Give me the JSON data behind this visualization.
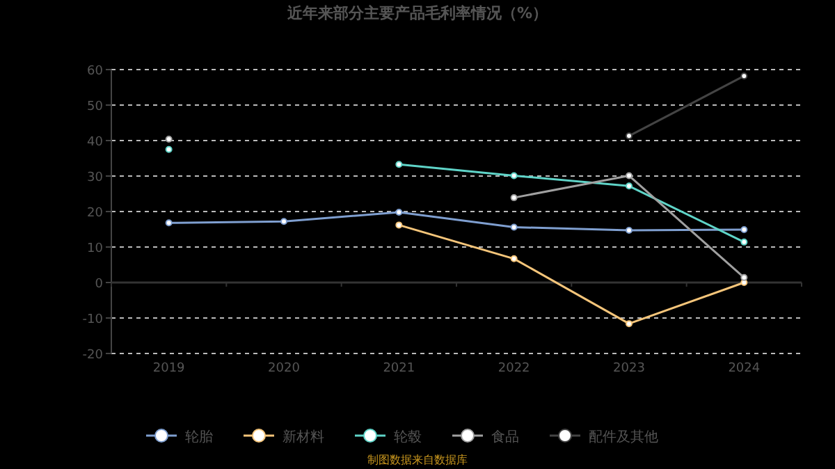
{
  "chart_data": {
    "type": "line",
    "title": "近年来部分主要产品毛利率情况（%）",
    "categories": [
      "2019",
      "2020",
      "2021",
      "2022",
      "2023",
      "2024"
    ],
    "series": [
      {
        "name": "轮胎",
        "color": "#7f9fd0",
        "values": [
          16.8,
          17.2,
          19.8,
          15.6,
          14.7,
          14.9
        ]
      },
      {
        "name": "新材料",
        "color": "#f5c57a",
        "values": [
          null,
          null,
          16.2,
          6.7,
          -11.6,
          0
        ]
      },
      {
        "name": "轮毂",
        "color": "#5fd4c8",
        "values": [
          37.5,
          null,
          33.3,
          30.1,
          27.2,
          11.4
        ]
      },
      {
        "name": "食品",
        "color": "#a0a0a0",
        "values": [
          40.4,
          null,
          null,
          23.9,
          30.1,
          1.4
        ]
      },
      {
        "name": "配件及其他",
        "color": "#444444",
        "values": [
          null,
          null,
          null,
          null,
          41.3,
          58.2
        ]
      }
    ],
    "ylim": [
      -20,
      60
    ],
    "yticks": [
      -20,
      -10,
      0,
      10,
      20,
      30,
      40,
      50,
      60
    ],
    "grid": "y",
    "legend": "bottom",
    "marker": "circle",
    "line_style": "solid",
    "annotations": [
      "制图数据来自数据库"
    ]
  }
}
